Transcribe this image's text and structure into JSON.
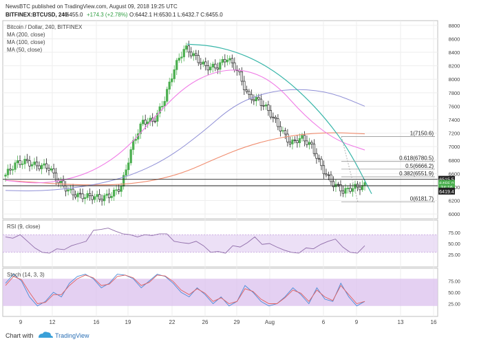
{
  "header": {
    "line1": "NewsBTC published on TradingView.com, August 09, 2018 19:25 UTC",
    "symbol": "BITFINEX:BTCUSD, 240",
    "last": "6455.0",
    "change": "+174.3 (+2.78%)",
    "ohlc": "O:6442.1  H:6530.1  L:6432.7  C:6455.0"
  },
  "footer": {
    "brand_prefix": "Chart with",
    "brand_name": "TradingView"
  },
  "colors": {
    "up": "#4caf50",
    "down": "#222222",
    "ma200": "#f08c6e",
    "ma100": "#8f8fd6",
    "ma50": "#f07ae6",
    "arc": "#36b5a8",
    "rsi": "#8e6ba8",
    "band": "#e6d6f3",
    "stochK": "#4a8bd6",
    "stochD": "#e06060",
    "stochBand": "#ddc4ef"
  },
  "chart_data": [
    {
      "type": "candlestick",
      "title": "Bitcoin / Dollar, 240, BITFINEX",
      "legend": [
        "MA (200, close)",
        "MA (100, close)",
        "MA (50, close)"
      ],
      "x_ticks": [
        "9",
        "12",
        "16",
        "19",
        "22",
        "26",
        "29",
        "Aug",
        "6",
        "9",
        "13",
        "16"
      ],
      "y_ticks": [
        6000,
        6200,
        6400,
        6600,
        6800,
        7000,
        7200,
        7400,
        7600,
        7800,
        8000,
        8200,
        8400,
        8600,
        8800
      ],
      "ylim": [
        5930,
        8870
      ],
      "price_labels": [
        "6515.5",
        "6455.0",
        "6419.4"
      ],
      "price_sub": "34:16",
      "fib_levels": [
        {
          "label": "1(7150.6)",
          "value": 7150.6
        },
        {
          "label": "0.618(6780.5)",
          "value": 6780.5
        },
        {
          "label": "0.5(6666.2)",
          "value": 6666.2
        },
        {
          "label": "0.382(6551.9)",
          "value": 6551.9
        },
        {
          "label": "0(6181.7)",
          "value": 6181.7
        }
      ],
      "support_lines": [
        6515,
        6420
      ],
      "key_closes": [
        6580,
        6720,
        6780,
        6750,
        6700,
        6450,
        6350,
        6300,
        6250,
        6200,
        6300,
        6450,
        7000,
        7350,
        7400,
        7700,
        8150,
        8450,
        8350,
        8200,
        8150,
        8300,
        8150,
        7750,
        7650,
        7500,
        7300,
        7050,
        7100,
        7000,
        6700,
        6450,
        6300,
        6400,
        6455
      ],
      "ma200": [
        6500,
        6470,
        6440,
        6430,
        6440,
        6500,
        6620,
        6820,
        7000,
        7120,
        7190,
        7210,
        7190
      ],
      "ma100": [
        6350,
        6340,
        6380,
        6460,
        6600,
        6840,
        7200,
        7620,
        7810,
        7860,
        7800,
        7600
      ],
      "ma50": [
        6500,
        6450,
        6500,
        6650,
        6950,
        7450,
        7900,
        8120,
        8150,
        7950,
        7450,
        7100,
        6950
      ],
      "arc": [
        8520,
        8500,
        8420,
        8280,
        8070,
        7780,
        7420,
        6960,
        6300
      ]
    },
    {
      "type": "line",
      "title": "RSI (9, close)",
      "y_ticks": [
        25,
        50,
        75
      ],
      "ylim": [
        0,
        100
      ],
      "band": [
        30,
        70
      ],
      "values": [
        65,
        62,
        70,
        55,
        40,
        30,
        28,
        38,
        36,
        45,
        50,
        55,
        80,
        82,
        85,
        78,
        72,
        70,
        65,
        70,
        68,
        72,
        72,
        55,
        52,
        50,
        55,
        45,
        30,
        32,
        28,
        45,
        42,
        52,
        65,
        48,
        50,
        42,
        35,
        30,
        28,
        40,
        38,
        48,
        55,
        60,
        42,
        30,
        28,
        45
      ]
    },
    {
      "type": "line",
      "title": "Stoch (14, 3, 3)",
      "y_ticks": [
        25,
        50,
        75
      ],
      "ylim": [
        0,
        100
      ],
      "band": [
        20,
        80
      ],
      "values_k": [
        70,
        90,
        75,
        40,
        20,
        30,
        50,
        40,
        70,
        85,
        90,
        80,
        60,
        70,
        90,
        88,
        80,
        60,
        75,
        90,
        85,
        70,
        50,
        40,
        60,
        45,
        25,
        40,
        20,
        30,
        65,
        50,
        30,
        20,
        25,
        40,
        60,
        45,
        25,
        60,
        35,
        30,
        70,
        40,
        20,
        30
      ],
      "values_d": [
        65,
        85,
        78,
        50,
        25,
        28,
        45,
        45,
        65,
        80,
        88,
        82,
        65,
        68,
        85,
        88,
        82,
        65,
        72,
        88,
        86,
        74,
        55,
        45,
        58,
        48,
        30,
        38,
        25,
        30,
        58,
        52,
        35,
        25,
        25,
        38,
        55,
        48,
        30,
        55,
        40,
        32,
        65,
        45,
        25,
        30
      ]
    }
  ]
}
